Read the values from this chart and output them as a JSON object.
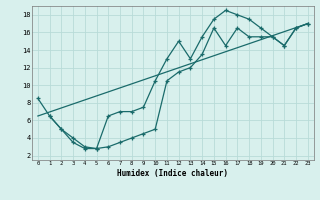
{
  "xlabel": "Humidex (Indice chaleur)",
  "bg_color": "#d8f0ed",
  "grid_color": "#b8dbd8",
  "line_color": "#1a6b6b",
  "xlim": [
    -0.5,
    23.5
  ],
  "ylim": [
    1.5,
    19.0
  ],
  "xticks": [
    0,
    1,
    2,
    3,
    4,
    5,
    6,
    7,
    8,
    9,
    10,
    11,
    12,
    13,
    14,
    15,
    16,
    17,
    18,
    19,
    20,
    21,
    22,
    23
  ],
  "yticks": [
    2,
    4,
    6,
    8,
    10,
    12,
    14,
    16,
    18
  ],
  "line1_x": [
    0,
    1,
    2,
    3,
    4,
    5,
    6,
    7,
    8,
    9,
    10,
    11,
    12,
    13,
    14,
    15,
    16,
    17,
    18,
    19,
    20,
    21,
    22,
    23
  ],
  "line1_y": [
    8.5,
    6.5,
    5.0,
    4.0,
    3.0,
    2.8,
    6.5,
    7.0,
    7.0,
    7.5,
    10.5,
    13.0,
    15.0,
    13.0,
    15.5,
    17.5,
    18.5,
    18.0,
    17.5,
    16.5,
    15.5,
    14.5,
    16.5,
    17.0
  ],
  "line2_x": [
    1,
    2,
    3,
    4,
    5,
    6,
    7,
    8,
    9,
    10,
    11,
    12,
    13,
    14,
    15,
    16,
    17,
    18,
    19,
    20,
    21,
    22,
    23
  ],
  "line2_y": [
    6.5,
    5.0,
    3.5,
    2.8,
    2.8,
    3.0,
    3.5,
    4.0,
    4.5,
    5.0,
    10.5,
    11.5,
    12.0,
    13.5,
    16.5,
    14.5,
    16.5,
    15.5,
    15.5,
    15.5,
    14.5,
    16.5,
    17.0
  ],
  "line3_x": [
    0,
    23
  ],
  "line3_y": [
    6.5,
    17.0
  ]
}
